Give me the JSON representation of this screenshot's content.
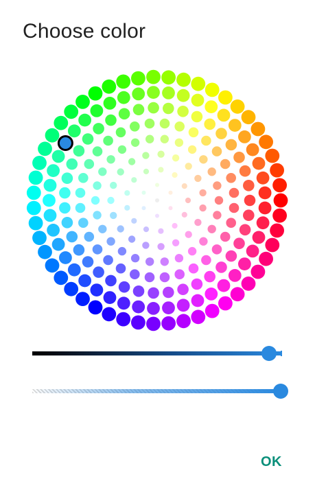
{
  "dialog": {
    "title": "Choose color",
    "ok_label": "OK"
  },
  "color_wheel": {
    "rings": 8,
    "selected_color": "#2a89df"
  },
  "lightness_slider": {
    "value_fraction": 0.95,
    "color_start": "#000000",
    "color_end": "#2a89df"
  },
  "alpha_slider": {
    "value_fraction": 1.0,
    "color": "#2a89df"
  },
  "colors": {
    "accent": "#0a8f7a",
    "thumb": "#2a89df",
    "title": "#212121"
  }
}
